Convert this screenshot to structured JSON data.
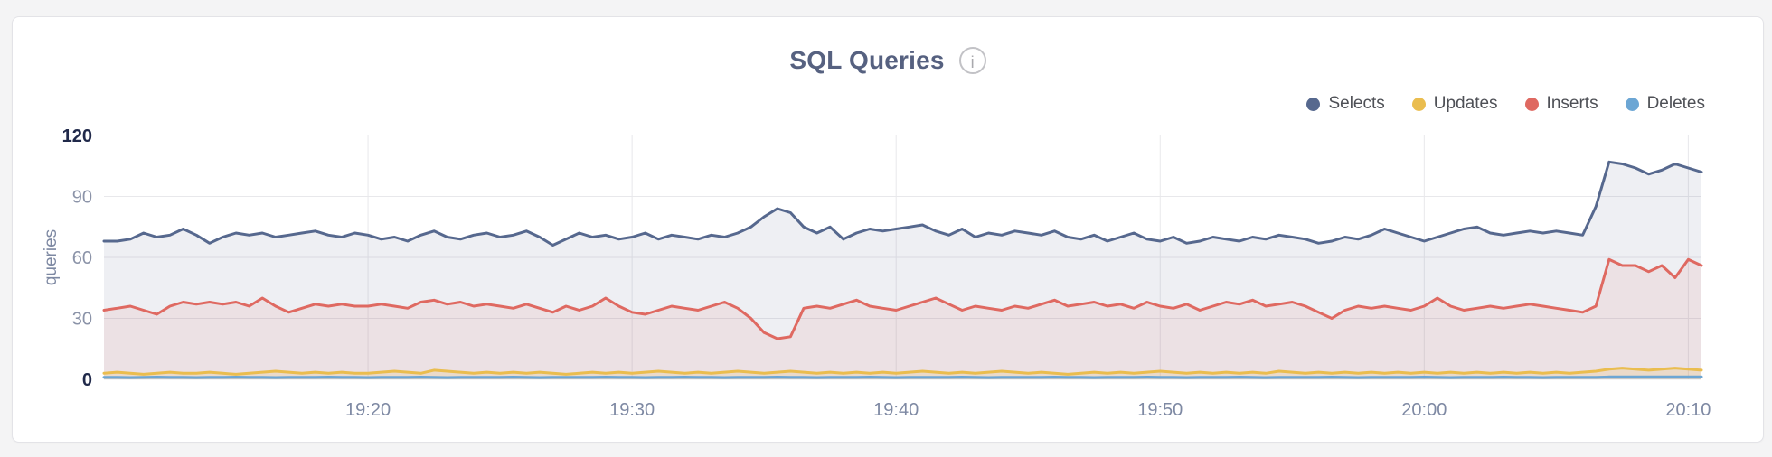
{
  "header": {
    "title": "SQL Queries",
    "info_icon": "i"
  },
  "chart_data": {
    "type": "area",
    "title": "SQL Queries",
    "xlabel": "",
    "ylabel": "queries",
    "ylim": [
      0,
      120
    ],
    "grid": true,
    "legend_position": "top-right",
    "x_minutes_per_point": 0.5,
    "x_range_minutes": [
      0,
      60.5
    ],
    "y_ticks": [
      {
        "value": 0,
        "label": "0",
        "emphasized": true
      },
      {
        "value": 30,
        "label": "30",
        "emphasized": false
      },
      {
        "value": 60,
        "label": "60",
        "emphasized": false
      },
      {
        "value": 90,
        "label": "90",
        "emphasized": false
      },
      {
        "value": 120,
        "label": "120",
        "emphasized": true
      }
    ],
    "x_ticks": [
      {
        "minute": 10,
        "label": "19:20"
      },
      {
        "minute": 20,
        "label": "19:30"
      },
      {
        "minute": 30,
        "label": "19:40"
      },
      {
        "minute": 40,
        "label": "19:50"
      },
      {
        "minute": 50,
        "label": "20:00"
      },
      {
        "minute": 60,
        "label": "20:10"
      }
    ],
    "series": [
      {
        "name": "Selects",
        "color": "#56688e",
        "fill": "rgba(86,102,140,0.10)",
        "values": [
          68,
          68,
          69,
          72,
          70,
          71,
          74,
          71,
          67,
          70,
          72,
          71,
          72,
          70,
          71,
          72,
          73,
          71,
          70,
          72,
          71,
          69,
          70,
          68,
          71,
          73,
          70,
          69,
          71,
          72,
          70,
          71,
          73,
          70,
          66,
          69,
          72,
          70,
          71,
          69,
          70,
          72,
          69,
          71,
          70,
          69,
          71,
          70,
          72,
          75,
          80,
          84,
          82,
          75,
          72,
          75,
          69,
          72,
          74,
          73,
          74,
          75,
          76,
          73,
          71,
          74,
          70,
          72,
          71,
          73,
          72,
          71,
          73,
          70,
          69,
          71,
          68,
          70,
          72,
          69,
          68,
          70,
          67,
          68,
          70,
          69,
          68,
          70,
          69,
          71,
          70,
          69,
          67,
          68,
          70,
          69,
          71,
          74,
          72,
          70,
          68,
          70,
          72,
          74,
          75,
          72,
          71,
          72,
          73,
          72,
          73,
          72,
          71,
          85,
          107,
          106,
          104,
          101,
          103,
          106,
          104,
          102
        ]
      },
      {
        "name": "Updates",
        "color": "#eabd4f",
        "fill": "rgba(234,189,79,0.18)",
        "values": [
          3,
          3.5,
          3,
          2.5,
          3,
          3.5,
          3,
          3,
          3.5,
          3,
          2.5,
          3,
          3.5,
          4,
          3.5,
          3,
          3.5,
          3,
          3.5,
          3,
          3,
          3.5,
          4,
          3.5,
          3,
          4.5,
          4,
          3.5,
          3,
          3.5,
          3,
          3.5,
          3,
          3.5,
          3,
          2.5,
          3,
          3.5,
          3,
          3.5,
          3,
          3.5,
          4,
          3.5,
          3,
          3.5,
          3,
          3.5,
          4,
          3.5,
          3,
          3.5,
          4,
          3.5,
          3,
          3.5,
          3,
          3.5,
          3,
          3.5,
          3,
          3.5,
          4,
          3.5,
          3,
          3.5,
          3,
          3.5,
          4,
          3.5,
          3,
          3.5,
          3,
          2.5,
          3,
          3.5,
          3,
          3.5,
          3,
          3.5,
          4,
          3.5,
          3,
          3.5,
          3,
          3.5,
          3,
          3.5,
          3,
          4,
          3.5,
          3,
          3.5,
          3,
          3.5,
          3,
          3.5,
          3,
          3.5,
          3,
          3.5,
          3,
          3.5,
          3,
          3.5,
          3,
          3.5,
          3,
          3.5,
          3,
          3.5,
          3,
          3.5,
          4,
          5,
          5.5,
          5,
          4.5,
          5,
          5.5,
          5,
          4.5
        ]
      },
      {
        "name": "Inserts",
        "color": "#df6961",
        "fill": "rgba(223,105,97,0.10)",
        "values": [
          34,
          35,
          36,
          34,
          32,
          36,
          38,
          37,
          38,
          37,
          38,
          36,
          40,
          36,
          33,
          35,
          37,
          36,
          37,
          36,
          36,
          37,
          36,
          35,
          38,
          39,
          37,
          38,
          36,
          37,
          36,
          35,
          37,
          35,
          33,
          36,
          34,
          36,
          40,
          36,
          33,
          32,
          34,
          36,
          35,
          34,
          36,
          38,
          35,
          30,
          23,
          20,
          21,
          35,
          36,
          35,
          37,
          39,
          36,
          35,
          34,
          36,
          38,
          40,
          37,
          34,
          36,
          35,
          34,
          36,
          35,
          37,
          39,
          36,
          37,
          38,
          36,
          37,
          35,
          38,
          36,
          35,
          37,
          34,
          36,
          38,
          37,
          39,
          36,
          37,
          38,
          36,
          33,
          30,
          34,
          36,
          35,
          36,
          35,
          34,
          36,
          40,
          36,
          34,
          35,
          36,
          35,
          36,
          37,
          36,
          35,
          34,
          33,
          36,
          59,
          56,
          56,
          53,
          56,
          50,
          59,
          56
        ]
      },
      {
        "name": "Deletes",
        "color": "#6ca6d4",
        "fill": "rgba(108,166,212,0.25)",
        "values": [
          1,
          1,
          0.9,
          1,
          1.1,
          1,
          1,
          0.9,
          1,
          1,
          1.1,
          1,
          1,
          0.9,
          1,
          1,
          1,
          1.1,
          1,
          1,
          0.9,
          1,
          1,
          1,
          1.1,
          1,
          0.9,
          1,
          1,
          1,
          1,
          1.1,
          1,
          0.9,
          1,
          1,
          1,
          1,
          1.1,
          1,
          1,
          0.9,
          1,
          1,
          1.1,
          1,
          1,
          0.9,
          1,
          1,
          1,
          1.1,
          1,
          1,
          0.9,
          1,
          1,
          1,
          1.1,
          1,
          0.9,
          1,
          1,
          1,
          1,
          1.1,
          1,
          0.9,
          1,
          1,
          1,
          1,
          1.1,
          1,
          1,
          0.9,
          1,
          1,
          1,
          1.1,
          1,
          1,
          0.9,
          1,
          1,
          1,
          1.1,
          1,
          0.9,
          1,
          1,
          1,
          1,
          1.1,
          1,
          0.9,
          1,
          1,
          1,
          1,
          1.1,
          1,
          0.9,
          1,
          1,
          1,
          1.1,
          1,
          1,
          0.9,
          1,
          1,
          1,
          1,
          1.2,
          1.2,
          1.2,
          1.2,
          1.2,
          1.2,
          1.2,
          1.2
        ]
      }
    ]
  },
  "colors": {
    "panel_background": "#ffffff",
    "page_background": "#f4f4f5",
    "grid": "#e8e8eb",
    "title": "#566180",
    "axis_text": "#7e89a3",
    "axis_text_emphasized": "#20294a"
  }
}
